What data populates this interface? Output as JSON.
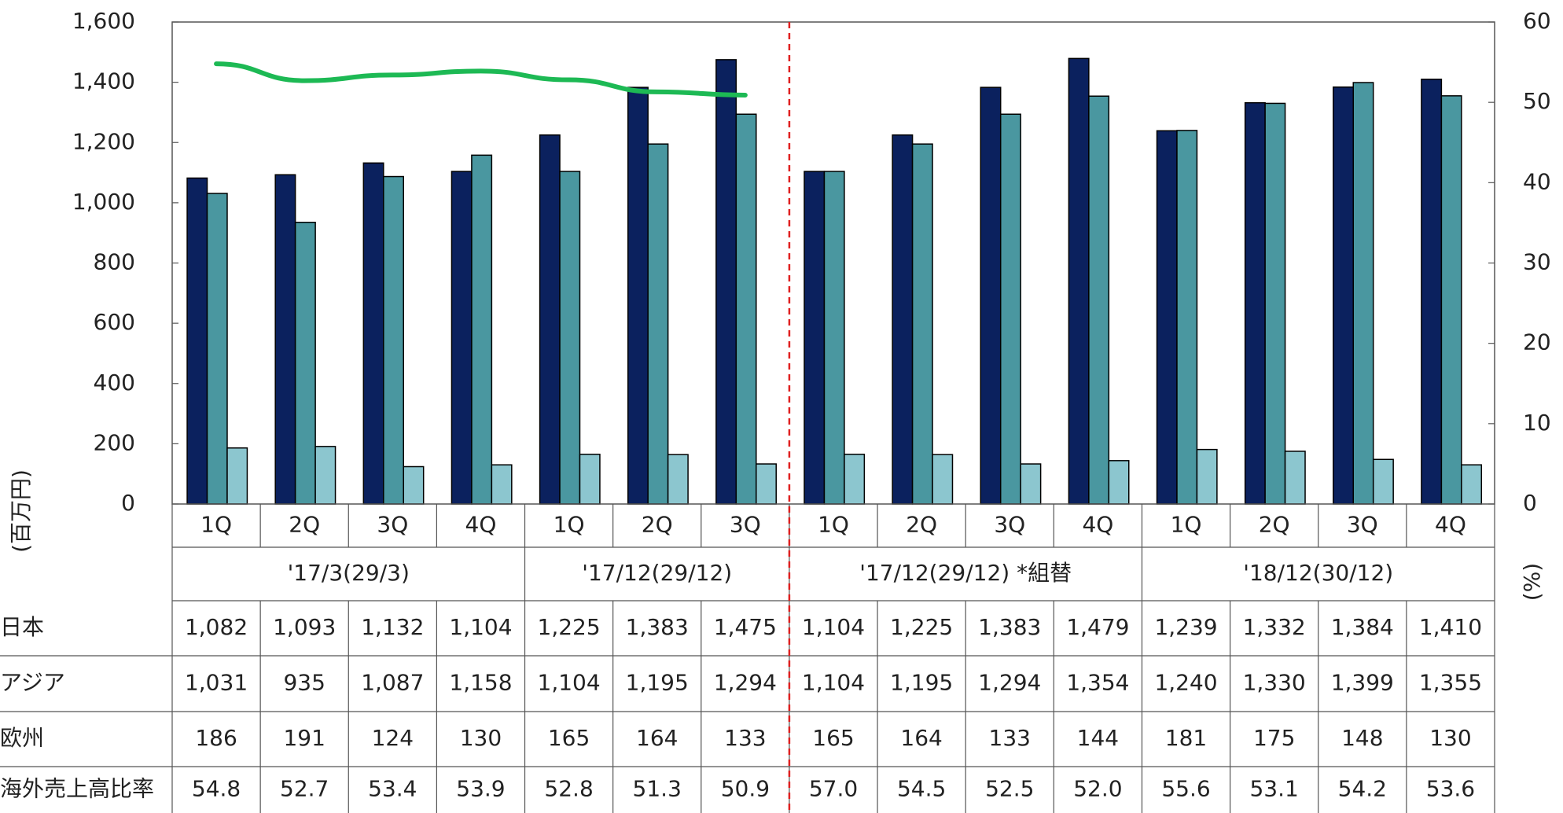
{
  "chart_data": {
    "type": "bar",
    "categories": [
      "1Q",
      "2Q",
      "3Q",
      "4Q",
      "1Q",
      "2Q",
      "3Q",
      "1Q",
      "2Q",
      "3Q",
      "4Q",
      "1Q",
      "2Q",
      "3Q",
      "4Q"
    ],
    "groups": [
      {
        "label": "'17/3(29/3)",
        "span": 4
      },
      {
        "label": "'17/12(29/12)",
        "span": 3
      },
      {
        "label": "'17/12(29/12) *組替",
        "span": 4
      },
      {
        "label": "'18/12(30/12)",
        "span": 4
      }
    ],
    "divider_after_group": 1,
    "ylabel": "(百万円)",
    "y2label": "(%)",
    "ylim": [
      0,
      1600
    ],
    "yticks": [
      0,
      200,
      400,
      600,
      800,
      {
        "value": 1000,
        "label": "1,000"
      },
      {
        "value": 1200,
        "label": "1,200"
      },
      {
        "value": 1400,
        "label": "1,400"
      },
      {
        "value": 1600,
        "label": "1,600"
      }
    ],
    "y2lim": [
      0,
      60
    ],
    "y2ticks": [
      0,
      10,
      20,
      30,
      40,
      50,
      60
    ],
    "grid": false,
    "series": [
      {
        "name": "日本",
        "color": "#0b215e",
        "values": [
          1082,
          1093,
          1132,
          1104,
          1225,
          1383,
          1475,
          1104,
          1225,
          1383,
          1479,
          1239,
          1332,
          1384,
          1410
        ],
        "value_labels": [
          "1,082",
          "1,093",
          "1,132",
          "1,104",
          "1,225",
          "1,383",
          "1,475",
          "1,104",
          "1,225",
          "1,383",
          "1,479",
          "1,239",
          "1,332",
          "1,384",
          "1,410"
        ]
      },
      {
        "name": "アジア",
        "color": "#4a97a0",
        "values": [
          1031,
          935,
          1087,
          1158,
          1104,
          1195,
          1294,
          1104,
          1195,
          1294,
          1354,
          1240,
          1330,
          1399,
          1355
        ],
        "value_labels": [
          "1,031",
          "935",
          "1,087",
          "1,158",
          "1,104",
          "1,195",
          "1,294",
          "1,104",
          "1,195",
          "1,294",
          "1,354",
          "1,240",
          "1,330",
          "1,399",
          "1,355"
        ]
      },
      {
        "name": "欧州",
        "color": "#8cc6cf",
        "values": [
          186,
          191,
          124,
          130,
          165,
          164,
          133,
          165,
          164,
          133,
          144,
          181,
          175,
          148,
          130
        ],
        "value_labels": [
          "186",
          "191",
          "124",
          "130",
          "165",
          "164",
          "133",
          "165",
          "164",
          "133",
          "144",
          "181",
          "175",
          "148",
          "130"
        ]
      },
      {
        "name": "海外売上高比率",
        "color": "#1db954",
        "type": "line",
        "axis": "y2",
        "line_groups": [
          0,
          1
        ],
        "values": [
          54.8,
          52.7,
          53.4,
          53.9,
          52.8,
          51.3,
          50.9,
          57.0,
          54.5,
          52.5,
          52.0,
          55.6,
          53.1,
          54.2,
          53.6
        ],
        "value_labels": [
          "54.8",
          "52.7",
          "53.4",
          "53.9",
          "52.8",
          "51.3",
          "50.9",
          "57.0",
          "54.5",
          "52.5",
          "52.0",
          "55.6",
          "53.1",
          "54.2",
          "53.6"
        ]
      }
    ]
  }
}
